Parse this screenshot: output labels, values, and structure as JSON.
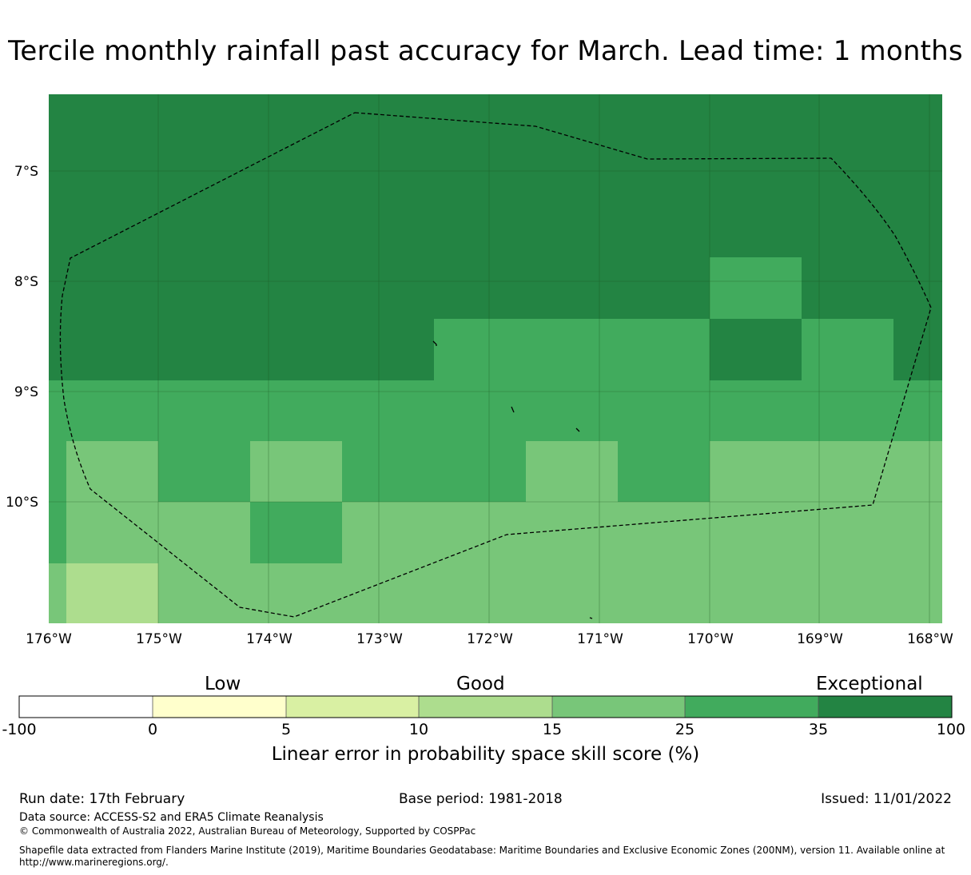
{
  "title": "Tercile monthly rainfall past accuracy for March. Lead time: 1 months",
  "map": {
    "lat_labels": [
      "7°S",
      "8°S",
      "9°S",
      "10°S"
    ],
    "lon_labels": [
      "176°W",
      "175°W",
      "174°W",
      "173°W",
      "172°W",
      "171°W",
      "170°W",
      "169°W",
      "168°W"
    ],
    "region": {
      "lon_min": -176,
      "lon_max": -168,
      "lat_top": -6.3,
      "lat_bottom": -11.1
    },
    "lat_grid": [
      -7,
      -8,
      -9,
      -10
    ],
    "lon_grid": [
      -176,
      -175,
      -174,
      -173,
      -172,
      -171,
      -170,
      -169,
      -168
    ]
  },
  "colorbar": {
    "group_labels": [
      "Low",
      "Good",
      "Exceptional"
    ],
    "tick_labels": [
      "-100",
      "0",
      "5",
      "10",
      "15",
      "25",
      "35",
      "100"
    ],
    "colors": [
      "#ffffff",
      "#ffffcc",
      "#d9f0a3",
      "#addd8e",
      "#78c679",
      "#41ab5d",
      "#238443"
    ],
    "label": "Linear error in probability space skill score (%)"
  },
  "footer": {
    "run_date": "Run date: 17th February",
    "base_period": "Base period: 1981-2018",
    "issued": "Issued: 11/01/2022",
    "data_source": "Data source: ACCESS-S2 and ERA5 Climate Reanalysis",
    "copyright": "© Commonwealth of Australia 2022, Australian Bureau of Meteorology, Supported by COSPPac",
    "shapefile": "Shapefile data extracted from Flanders Marine Institute (2019), Maritime Boundaries Geodatabase: Maritime Boundaries and Exclusive Economic Zones (200NM), version 11. Available online at http://www.marineregions.org/."
  }
}
